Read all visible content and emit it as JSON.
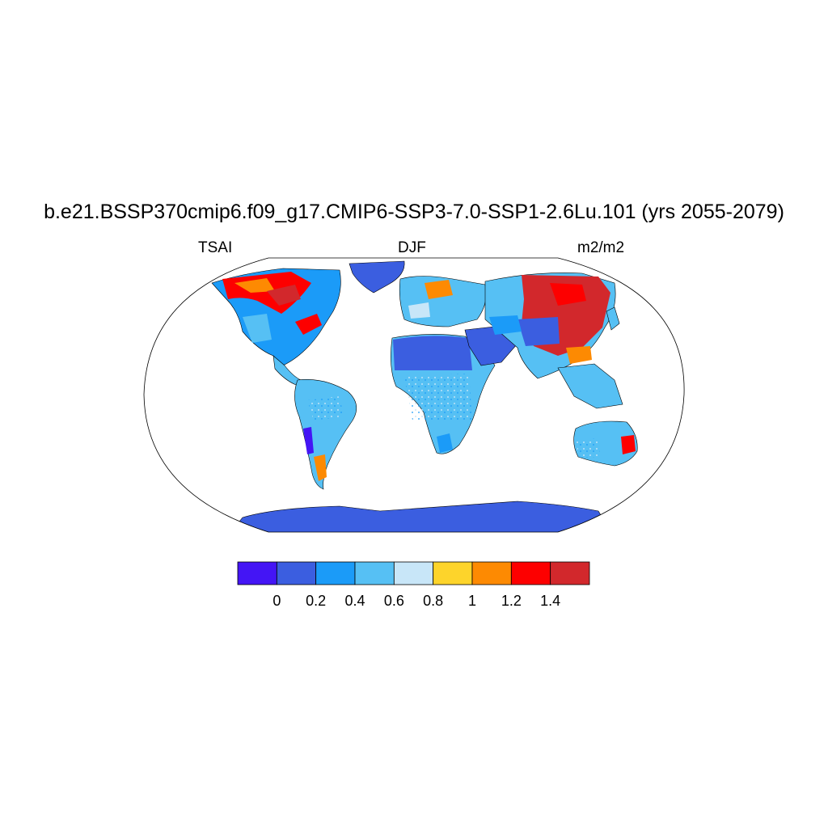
{
  "title": "b.e21.BSSP370cmip6.f09_g17.CMIP6-SSP3-7.0-SSP1-2.6Lu.101 (yrs 2055-2079)",
  "left_label": "TSAI",
  "center_label": "DJF",
  "right_label": "m2/m2",
  "colorbar": {
    "colors": [
      "#4415f5",
      "#3b5ee0",
      "#1b9bf8",
      "#56c0f4",
      "#c8e6f8",
      "#fdd42b",
      "#fd8a02",
      "#fd0000",
      "#d2282c"
    ],
    "tick_labels": [
      "0",
      "0.2",
      "0.4",
      "0.6",
      "0.8",
      "1",
      "1.2",
      "1.4"
    ]
  }
}
